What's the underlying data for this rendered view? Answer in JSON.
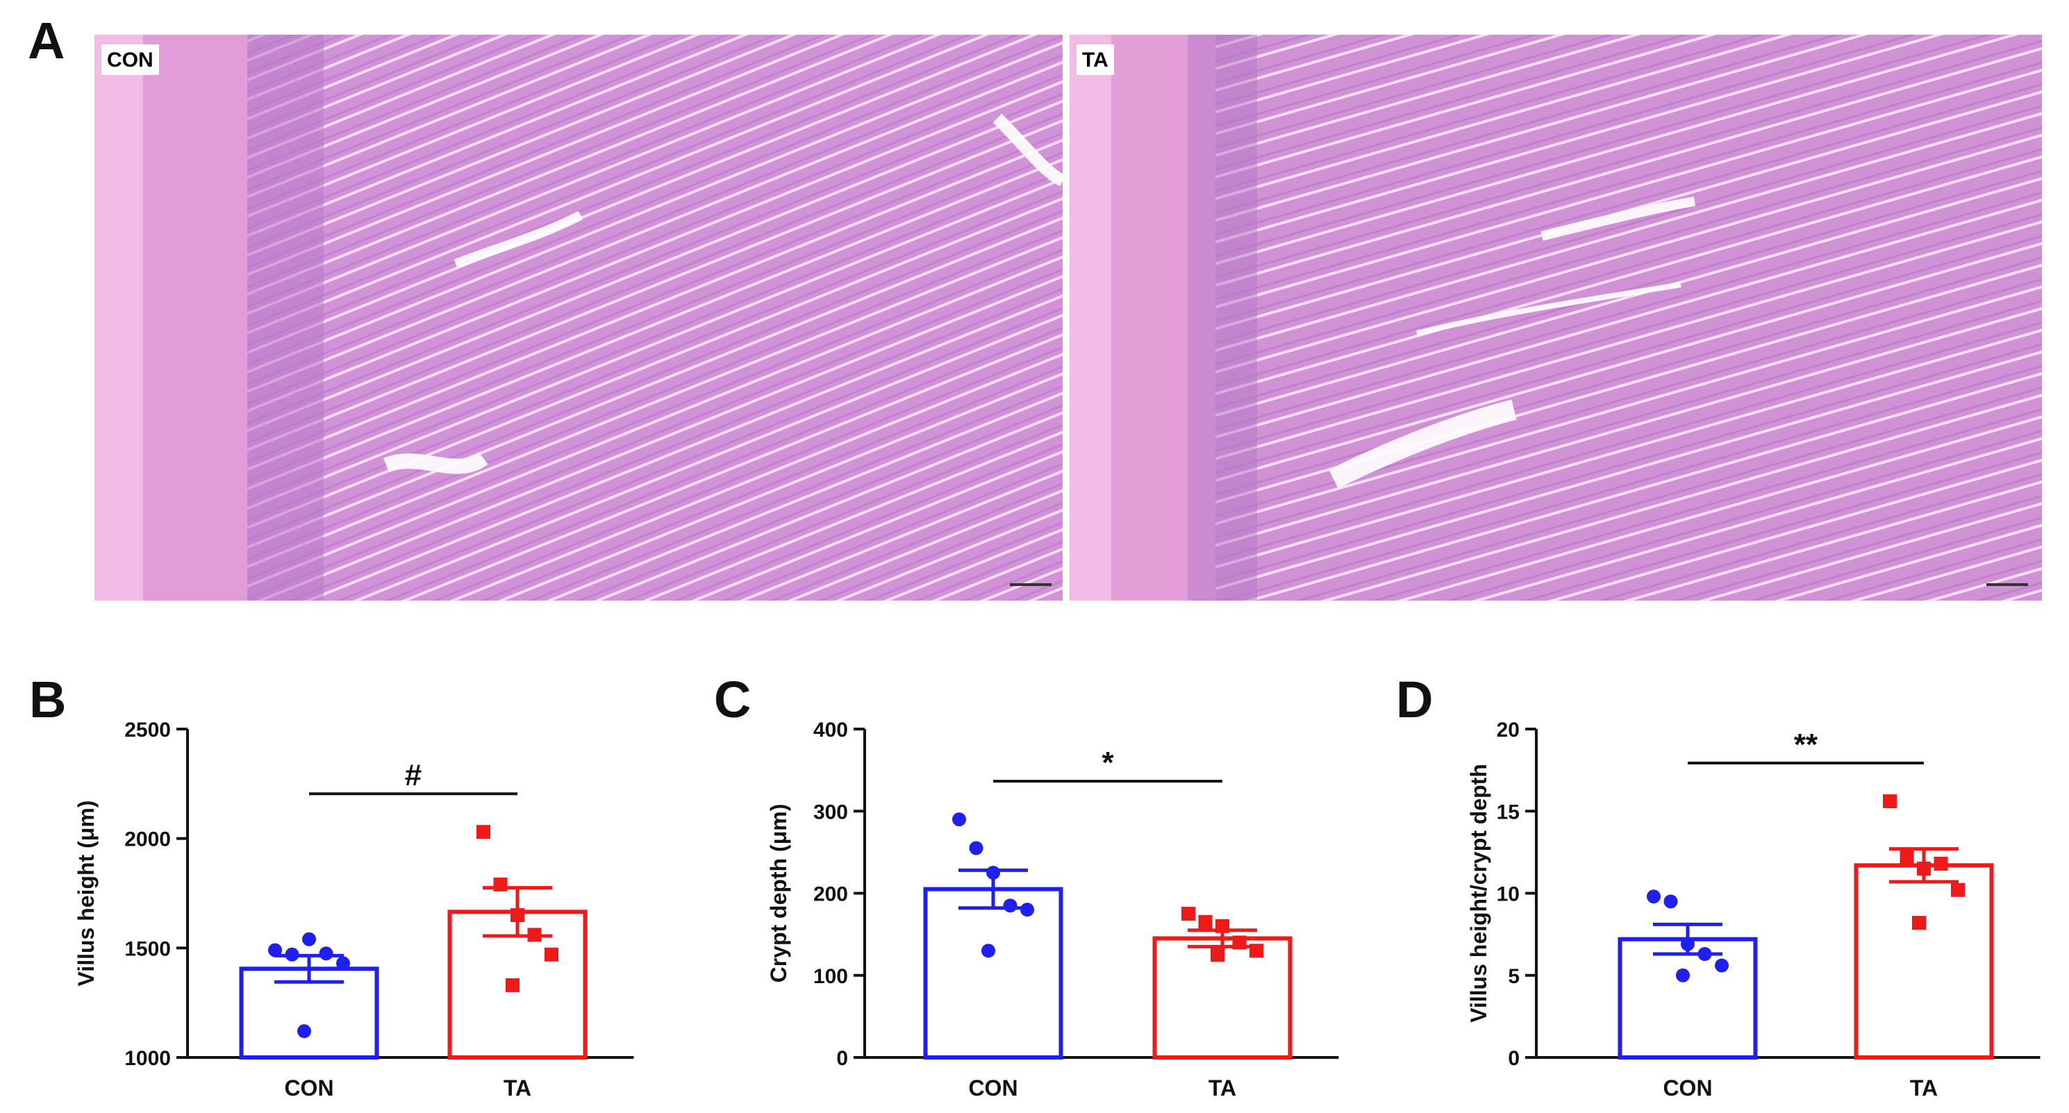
{
  "figure": {
    "panel_a_label": "A",
    "histology": [
      {
        "label": "CON",
        "tissue_color": "#e9a5dc",
        "mucosa_color": "#c983d2"
      },
      {
        "label": "TA",
        "tissue_color": "#e8a4db",
        "mucosa_color": "#c581cf"
      }
    ],
    "colors": {
      "con": "#1f1fef",
      "ta": "#ee1a1a",
      "axis": "#111111"
    }
  },
  "chart_data": [
    {
      "panel": "B",
      "type": "bar",
      "ylabel": "Villus height (μm)",
      "ylim": [
        1000,
        2500
      ],
      "yticks": [
        1000,
        1500,
        2000,
        2500
      ],
      "categories": [
        "CON",
        "TA"
      ],
      "values": [
        1405,
        1665
      ],
      "sem": [
        60,
        110
      ],
      "points": [
        [
          1490,
          1470,
          1540,
          1475,
          1430,
          1120
        ],
        [
          2030,
          1790,
          1650,
          1560,
          1470,
          1330
        ]
      ],
      "significance": "#"
    },
    {
      "panel": "C",
      "type": "bar",
      "ylabel": "Crypt depth (μm)",
      "ylim": [
        0,
        400
      ],
      "yticks": [
        0,
        100,
        200,
        300,
        400
      ],
      "categories": [
        "CON",
        "TA"
      ],
      "values": [
        205,
        145
      ],
      "sem": [
        23,
        10
      ],
      "points": [
        [
          290,
          255,
          225,
          185,
          180,
          130
        ],
        [
          175,
          165,
          160,
          140,
          130,
          125
        ]
      ],
      "significance": "*"
    },
    {
      "panel": "D",
      "type": "bar",
      "ylabel": "Villus height/crypt depth",
      "ylim": [
        0,
        20
      ],
      "yticks": [
        0,
        5,
        10,
        15,
        20
      ],
      "categories": [
        "CON",
        "TA"
      ],
      "values": [
        7.2,
        11.7
      ],
      "sem": [
        0.9,
        1.0
      ],
      "points": [
        [
          9.8,
          9.5,
          6.9,
          6.3,
          5.6,
          5.0
        ],
        [
          15.6,
          12.2,
          11.5,
          11.8,
          10.2,
          8.2
        ]
      ],
      "significance": "**"
    }
  ]
}
